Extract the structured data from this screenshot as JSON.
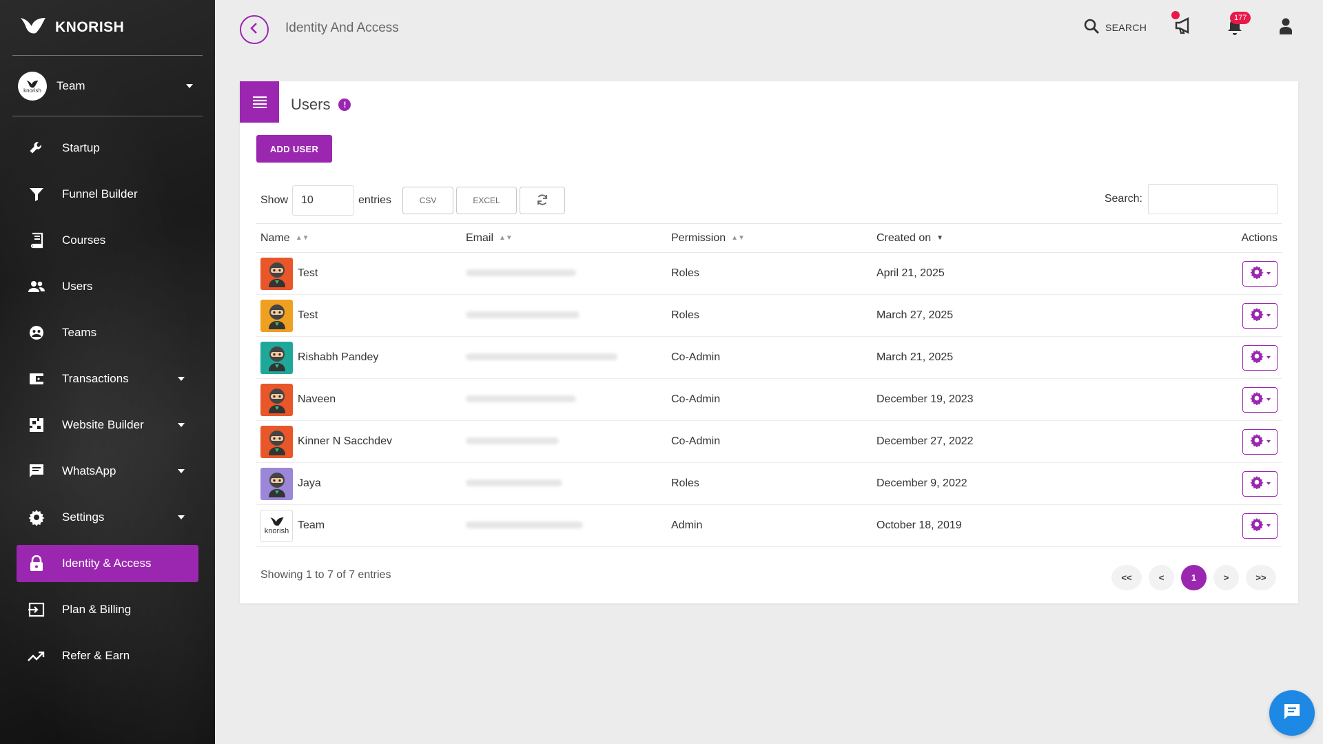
{
  "brand": {
    "name": "KNORISH",
    "accent": "#9b27b0"
  },
  "team_switch": {
    "label": "Team",
    "avatar_text": "knorish"
  },
  "sidebar": {
    "items": [
      {
        "label": "Startup",
        "icon": "wrench-icon",
        "has_caret": false
      },
      {
        "label": "Funnel Builder",
        "icon": "funnel-icon",
        "has_caret": false
      },
      {
        "label": "Courses",
        "icon": "book-icon",
        "has_caret": false
      },
      {
        "label": "Users",
        "icon": "users-icon",
        "has_caret": false
      },
      {
        "label": "Teams",
        "icon": "teams-icon",
        "has_caret": false
      },
      {
        "label": "Transactions",
        "icon": "wallet-icon",
        "has_caret": true
      },
      {
        "label": "Website Builder",
        "icon": "website-icon",
        "has_caret": true
      },
      {
        "label": "WhatsApp",
        "icon": "chat-icon",
        "has_caret": true
      },
      {
        "label": "Settings",
        "icon": "gear-icon",
        "has_caret": true
      },
      {
        "label": "Identity & Access",
        "icon": "lock-icon",
        "has_caret": false,
        "active": true
      },
      {
        "label": "Plan & Billing",
        "icon": "login-icon",
        "has_caret": false
      },
      {
        "label": "Refer & Earn",
        "icon": "trend-icon",
        "has_caret": false
      }
    ]
  },
  "header": {
    "title": "Identity And Access",
    "search_label": "SEARCH",
    "notification_count": "177"
  },
  "card": {
    "title": "Users",
    "add_user_label": "ADD USER",
    "show_label": "Show",
    "entries_label": "entries",
    "page_length": "10",
    "csv_label": "CSV",
    "excel_label": "EXCEL",
    "search_label": "Search:",
    "columns": {
      "name": "Name",
      "email": "Email",
      "permission": "Permission",
      "created": "Created on",
      "actions": "Actions"
    },
    "rows": [
      {
        "name": "Test",
        "permission": "Roles",
        "created": "April 21, 2025",
        "avatar_bg": "#e8562a"
      },
      {
        "name": "Test",
        "permission": "Roles",
        "created": "March 27, 2025",
        "avatar_bg": "#f0a020"
      },
      {
        "name": "Rishabh Pandey",
        "permission": "Co-Admin",
        "created": "March 21, 2025",
        "avatar_bg": "#1fa89a"
      },
      {
        "name": "Naveen",
        "permission": "Co-Admin",
        "created": "December 19, 2023",
        "avatar_bg": "#e8562a"
      },
      {
        "name": "Kinner N Sacchdev",
        "permission": "Co-Admin",
        "created": "December 27, 2022",
        "avatar_bg": "#e8562a"
      },
      {
        "name": "Jaya",
        "permission": "Roles",
        "created": "December 9, 2022",
        "avatar_bg": "#9b86d8"
      },
      {
        "name": "Team",
        "permission": "Admin",
        "created": "October 18, 2019",
        "avatar_bg": "#ffffff",
        "avatar_text": "knorish"
      }
    ],
    "footer": "Showing 1 to 7 of 7 entries",
    "pager": {
      "first": "<<",
      "prev": "<",
      "current": "1",
      "next": ">",
      "last": ">>"
    }
  }
}
